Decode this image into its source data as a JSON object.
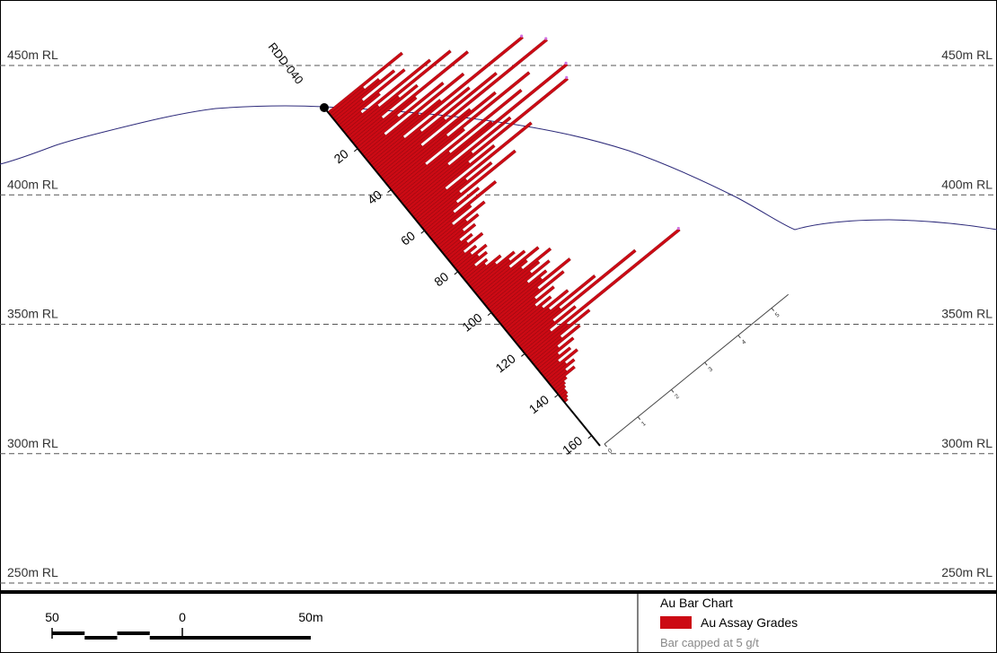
{
  "section": {
    "rl_lines": [
      {
        "elevation": 450,
        "label_left": "450m RL",
        "label_right": "450m RL"
      },
      {
        "elevation": 400,
        "label_left": "400m RL",
        "label_right": "400m RL"
      },
      {
        "elevation": 350,
        "label_left": "350m RL",
        "label_right": "350m RL"
      },
      {
        "elevation": 300,
        "label_left": "300m RL",
        "label_right": "300m RL"
      },
      {
        "elevation": 250,
        "label_left": "250m RL",
        "label_right": "250m RL"
      }
    ],
    "colors": {
      "topography": "#2d2a7a",
      "bar_fill": "#cc0a14",
      "bar_stroke": "#7a0008",
      "collar": "#000000",
      "cap_marker": "#d070e0",
      "gridline": "#555555"
    }
  },
  "drillhole": {
    "name": "RDD-040",
    "depth_labels": [
      "20",
      "40",
      "60",
      "80",
      "100",
      "120",
      "140",
      "160"
    ],
    "au_bars_g_t": [
      2.2,
      1.0,
      1.4,
      1.8,
      0.8,
      2.0,
      1.2,
      0.6,
      2.6,
      1.0,
      3.1,
      1.5,
      2.0,
      0.9,
      3.4,
      1.8,
      1.2,
      2.5,
      0.7,
      3.0,
      1.6,
      2.2,
      4.6,
      1.0,
      2.9,
      1.4,
      3.6,
      2.0,
      5.0,
      1.2,
      2.6,
      3.3,
      1.8,
      4.2,
      2.2,
      1.0,
      3.8,
      1.6,
      2.8,
      5.0,
      1.4,
      3.2,
      2.0,
      4.8,
      1.8,
      2.5,
      1.0,
      3.5,
      1.5,
      2.2,
      1.2,
      2.8,
      1.0,
      1.6,
      0.8,
      2.0,
      1.2,
      0.6,
      1.5,
      0.9,
      1.2,
      0.7,
      1.0,
      0.5,
      0.8,
      0.6,
      1.0,
      0.4,
      0.7,
      0.5,
      0.9,
      0.6,
      0.8,
      0.4,
      0.7,
      0.6,
      1.0,
      0.8,
      1.3,
      1.1,
      1.5,
      1.0,
      1.8,
      1.4,
      1.2,
      2.0,
      1.6,
      1.3,
      1.8,
      1.1,
      1.6,
      1.4,
      2.2,
      1.2,
      1.9,
      1.0,
      1.5,
      0.9,
      1.3,
      1.0,
      1.7,
      1.1,
      2.4,
      1.3,
      3.5,
      1.0,
      1.6,
      0.8,
      4.6,
      1.2,
      1.8,
      0.9,
      1.4,
      0.7,
      1.1,
      0.6,
      0.9,
      0.5,
      1.0,
      0.6,
      0.8,
      0.5,
      0.7,
      0.4,
      0.3,
      0.25,
      0.2,
      0.2,
      0.15,
      0.1
    ],
    "grade_axis": {
      "ticks": [
        "0",
        "1",
        "2",
        "3",
        "4",
        "5"
      ]
    }
  },
  "scale_bar": {
    "labels": [
      "50",
      "0",
      "50m"
    ]
  },
  "legend": {
    "title": "Au Bar Chart",
    "item_label": "Au Assay Grades",
    "note": "Bar capped at 5 g/t"
  }
}
